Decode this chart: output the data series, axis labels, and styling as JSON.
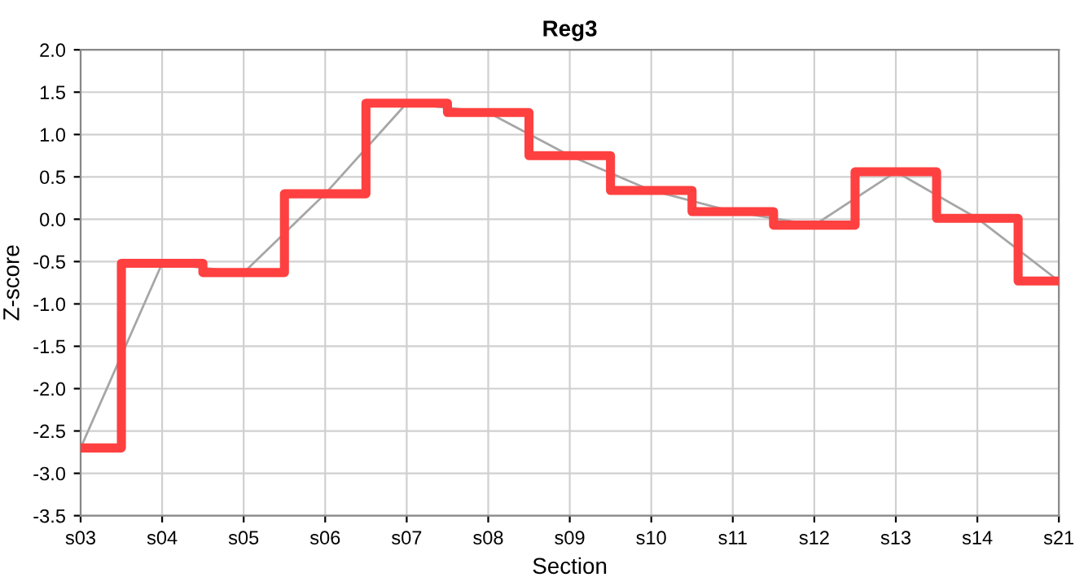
{
  "chart_data": {
    "type": "step",
    "title": "Reg3",
    "xlabel": "Section",
    "ylabel": "Z-score",
    "categories": [
      "s03",
      "s04",
      "s05",
      "s06",
      "s07",
      "s08",
      "s09",
      "s10",
      "s11",
      "s12",
      "s13",
      "s14",
      "s21"
    ],
    "series": [
      {
        "type": "line",
        "color": "#a6a6a6",
        "values": [
          -2.7,
          -0.52,
          -0.63,
          0.3,
          1.37,
          1.26,
          0.75,
          0.34,
          0.09,
          -0.07,
          0.56,
          0.01,
          -0.73
        ]
      },
      {
        "color": "#ff4040",
        "values": [
          -2.7,
          -0.52,
          -0.63,
          0.3,
          1.37,
          1.26,
          0.75,
          0.34,
          0.09,
          -0.07,
          0.56,
          0.01,
          -0.73
        ]
      }
    ],
    "ylim": [
      -3.5,
      2.0
    ],
    "yticks": [
      {
        "value": -3.5,
        "label": "-3.5"
      },
      {
        "value": -3.0,
        "label": "-3.0"
      },
      {
        "value": -2.5,
        "label": "-2.5"
      },
      {
        "value": -2.0,
        "label": "-2.0"
      },
      {
        "value": -1.5,
        "label": "-1.5"
      },
      {
        "value": -1.0,
        "label": "-1.0"
      },
      {
        "value": -0.5,
        "label": "-0.5"
      },
      {
        "value": 0.0,
        "label": "0.0"
      },
      {
        "value": 0.5,
        "label": "0.5"
      },
      {
        "value": 1.0,
        "label": "1.0"
      },
      {
        "value": 1.5,
        "label": "1.5"
      },
      {
        "value": 2.0,
        "label": "2.0"
      }
    ],
    "grid": true,
    "marker": "none"
  }
}
